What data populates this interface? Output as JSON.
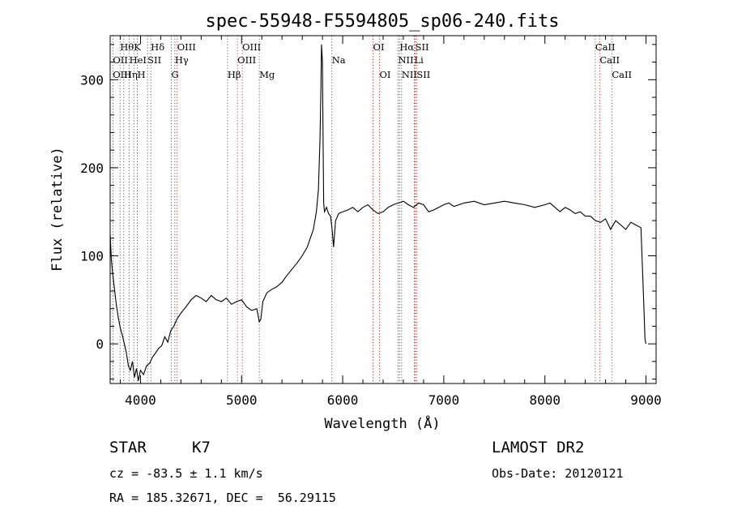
{
  "chart_data": {
    "type": "line",
    "title": "spec-55948-F5594805_sp06-240.fits",
    "xlabel": "Wavelength (Å)",
    "ylabel": "Flux (relative)",
    "xlim": [
      3700,
      9100
    ],
    "ylim": [
      -45,
      350
    ],
    "x_ticks": [
      4000,
      5000,
      6000,
      7000,
      8000,
      9000
    ],
    "y_ticks": [
      0,
      100,
      200,
      300
    ],
    "grid": false,
    "spectrum": {
      "x": [
        3700,
        3712,
        3725,
        3740,
        3760,
        3780,
        3800,
        3820,
        3840,
        3860,
        3880,
        3900,
        3920,
        3940,
        3960,
        3980,
        4000,
        4030,
        4060,
        4090,
        4120,
        4150,
        4180,
        4210,
        4240,
        4270,
        4300,
        4330,
        4360,
        4400,
        4450,
        4500,
        4550,
        4600,
        4650,
        4700,
        4750,
        4800,
        4850,
        4900,
        4950,
        5000,
        5050,
        5100,
        5150,
        5175,
        5190,
        5210,
        5250,
        5300,
        5350,
        5400,
        5450,
        5500,
        5550,
        5600,
        5650,
        5680,
        5710,
        5740,
        5760,
        5775,
        5785,
        5790,
        5800,
        5805,
        5812,
        5820,
        5840,
        5860,
        5880,
        5895,
        5910,
        5930,
        5960,
        6000,
        6050,
        6100,
        6150,
        6200,
        6250,
        6300,
        6350,
        6400,
        6450,
        6500,
        6550,
        6600,
        6650,
        6700,
        6750,
        6800,
        6850,
        6900,
        6950,
        7000,
        7050,
        7100,
        7150,
        7200,
        7300,
        7400,
        7500,
        7600,
        7700,
        7800,
        7900,
        8000,
        8050,
        8100,
        8150,
        8200,
        8250,
        8300,
        8350,
        8400,
        8450,
        8500,
        8550,
        8600,
        8650,
        8700,
        8750,
        8800,
        8850,
        8900,
        8950,
        8980,
        8990,
        9000
      ],
      "y": [
        125,
        95,
        80,
        65,
        45,
        30,
        18,
        10,
        0,
        -10,
        -25,
        -30,
        -20,
        -38,
        -28,
        -42,
        -30,
        -35,
        -25,
        -22,
        -15,
        -10,
        -5,
        -2,
        8,
        2,
        15,
        20,
        28,
        35,
        42,
        50,
        55,
        52,
        48,
        55,
        50,
        48,
        52,
        45,
        48,
        50,
        42,
        38,
        40,
        25,
        28,
        48,
        58,
        62,
        65,
        70,
        78,
        85,
        92,
        100,
        110,
        120,
        130,
        150,
        175,
        230,
        290,
        340,
        320,
        250,
        160,
        150,
        155,
        148,
        145,
        130,
        110,
        140,
        148,
        150,
        152,
        155,
        150,
        155,
        158,
        152,
        148,
        150,
        155,
        158,
        160,
        162,
        158,
        155,
        160,
        158,
        150,
        152,
        155,
        158,
        160,
        156,
        158,
        160,
        162,
        158,
        160,
        162,
        160,
        158,
        155,
        158,
        160,
        155,
        150,
        155,
        152,
        148,
        150,
        145,
        145,
        140,
        138,
        142,
        130,
        140,
        135,
        130,
        138,
        135,
        132,
        40,
        5,
        0
      ]
    },
    "lines_top": [
      {
        "label": "Hθ",
        "x": 3798,
        "row": 0
      },
      {
        "label": "K",
        "x": 3934,
        "row": 0
      },
      {
        "label": "Hδ",
        "x": 4102,
        "row": 0
      },
      {
        "label": "OIII",
        "x": 4363,
        "row": 0
      },
      {
        "label": "OIII",
        "x": 5007,
        "row": 0
      },
      {
        "label": "OI",
        "x": 6300,
        "row": 0
      },
      {
        "label": "Hα",
        "x": 6563,
        "row": 0
      },
      {
        "label": "SII",
        "x": 6717,
        "row": 0
      },
      {
        "label": "CaII",
        "x": 8498,
        "row": 0
      },
      {
        "label": "OII",
        "x": 3727,
        "row": 1
      },
      {
        "label": "HeI",
        "x": 3889,
        "row": 1
      },
      {
        "label": "SII",
        "x": 4070,
        "row": 1
      },
      {
        "label": "Hγ",
        "x": 4340,
        "row": 1
      },
      {
        "label": "OIII",
        "x": 4959,
        "row": 1
      },
      {
        "label": "Na",
        "x": 5893,
        "row": 1
      },
      {
        "label": "NII",
        "x": 6548,
        "row": 1
      },
      {
        "label": "Li",
        "x": 6708,
        "row": 1
      },
      {
        "label": "CaII",
        "x": 8542,
        "row": 1
      },
      {
        "label": "OIII",
        "x": 3726,
        "row": 2
      },
      {
        "label": "Hη",
        "x": 3835,
        "row": 2
      },
      {
        "label": "H",
        "x": 3968,
        "row": 2
      },
      {
        "label": "G",
        "x": 4305,
        "row": 2
      },
      {
        "label": "Hβ",
        "x": 4861,
        "row": 2
      },
      {
        "label": "Mg",
        "x": 5175,
        "row": 2
      },
      {
        "label": "OI",
        "x": 6364,
        "row": 2
      },
      {
        "label": "NII",
        "x": 6583,
        "row": 2
      },
      {
        "label": "SII",
        "x": 6731,
        "row": 2
      },
      {
        "label": "CaII",
        "x": 8662,
        "row": 2
      }
    ],
    "line_markers_dotted_black": [
      3727,
      3798,
      3835,
      3889,
      3934,
      3968,
      4070,
      4102,
      4305,
      4340,
      4861,
      5175,
      5893,
      6548,
      6583,
      6708,
      8498
    ],
    "line_markers_dotted_red": [
      4363,
      4959,
      5007,
      6300,
      6364,
      6563,
      6717,
      6731,
      8542,
      8662
    ],
    "colors": {
      "spectrum": "#000000",
      "marker_black": "#333333",
      "marker_red": "#cc0000"
    }
  },
  "info": {
    "object_class": "STAR",
    "subclass": "K7",
    "survey": "LAMOST DR2",
    "cz": "cz = -83.5 ± 1.1 km/s",
    "obs_date": "Obs-Date: 20120121",
    "coords": "RA = 185.32671, DEC =  56.29115"
  }
}
